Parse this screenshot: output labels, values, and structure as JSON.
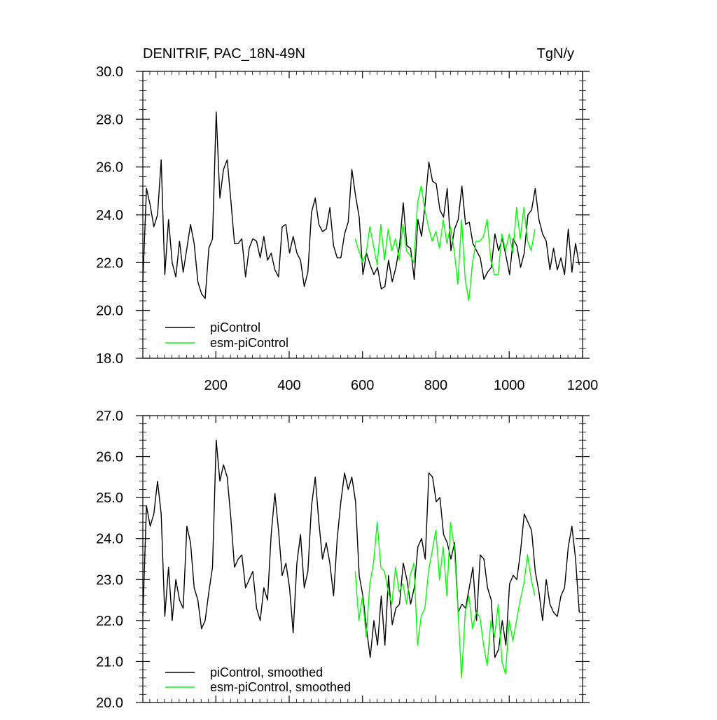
{
  "chart_data": [
    {
      "type": "line",
      "title": "DENITRIF, PAC_18N-49N",
      "units": "TgN/y",
      "xlim": [
        1,
        1200
      ],
      "ylim": [
        18.0,
        30.0
      ],
      "x_ticks": [
        200,
        400,
        600,
        800,
        1000,
        1200
      ],
      "x_tick_labels": [
        "200",
        "400",
        "600",
        "800",
        "1000",
        "1200"
      ],
      "y_ticks": [
        18.0,
        20.0,
        22.0,
        24.0,
        26.0,
        28.0,
        30.0
      ],
      "y_tick_labels": [
        "18.0",
        "20.0",
        "22.0",
        "24.0",
        "26.0",
        "28.0",
        "30.0"
      ],
      "legend_position": "bottom-left",
      "series": [
        {
          "name": "piControl",
          "color": "#000000",
          "x_start": 1,
          "x_step": 10,
          "values": [
            21.2,
            25.1,
            24.4,
            23.5,
            24.0,
            26.3,
            21.5,
            23.8,
            22.0,
            21.4,
            22.9,
            21.6,
            22.6,
            23.6,
            22.8,
            21.2,
            20.7,
            20.5,
            22.6,
            23.0,
            28.3,
            24.7,
            25.9,
            26.3,
            24.6,
            22.8,
            22.8,
            23.0,
            21.4,
            22.6,
            23.0,
            22.9,
            22.2,
            23.1,
            22.1,
            22.4,
            21.7,
            21.4,
            23.5,
            23.6,
            22.4,
            23.1,
            22.4,
            22.1,
            21.0,
            21.6,
            24.1,
            24.7,
            23.6,
            23.3,
            23.4,
            24.3,
            22.7,
            22.2,
            22.2,
            23.2,
            23.7,
            25.9,
            24.8,
            23.9,
            21.5,
            22.4,
            21.9,
            21.5,
            21.8,
            20.9,
            21.0,
            22.1,
            21.2,
            21.8,
            22.7,
            24.5,
            22.7,
            22.6,
            21.3,
            23.8,
            23.1,
            24.5,
            26.2,
            25.4,
            25.3,
            24.2,
            23.9,
            25.1,
            22.5,
            23.4,
            23.8,
            25.2,
            23.6,
            23.7,
            22.8,
            22.5,
            22.2,
            21.3,
            21.6,
            21.8,
            23.2,
            22.5,
            23.0,
            22.3,
            21.5,
            23.0,
            22.7,
            21.8,
            22.4,
            24.0,
            24.2,
            25.1,
            23.8,
            23.2,
            22.9,
            21.7,
            22.6,
            21.7,
            22.2,
            21.5,
            23.4,
            21.6,
            22.8,
            21.9
          ]
        },
        {
          "name": "esm-piControl",
          "color": "#00ff00",
          "x_start": 580,
          "x_step": 10,
          "values": [
            23.0,
            22.5,
            22.0,
            22.4,
            23.5,
            22.7,
            21.9,
            23.6,
            22.1,
            23.4,
            22.5,
            23.0,
            22.1,
            23.6,
            22.5,
            22.3,
            22.0,
            24.5,
            25.2,
            24.2,
            23.5,
            22.9,
            23.3,
            22.6,
            23.8,
            22.8,
            23.5,
            22.5,
            21.1,
            23.8,
            21.3,
            20.4,
            22.0,
            22.9,
            22.9,
            23.1,
            23.8,
            22.1,
            21.5,
            21.5,
            23.2,
            22.5,
            23.2,
            22.4,
            24.3,
            23.0,
            24.3,
            22.9,
            22.5,
            23.4
          ]
        }
      ]
    },
    {
      "type": "line",
      "title": "",
      "units": "",
      "xlim": [
        1,
        1200
      ],
      "ylim": [
        20.0,
        27.0
      ],
      "x_ticks": [
        200,
        400,
        600,
        800,
        1000,
        1200
      ],
      "x_tick_labels": [],
      "y_ticks": [
        20.0,
        21.0,
        22.0,
        23.0,
        24.0,
        25.0,
        26.0,
        27.0
      ],
      "y_tick_labels": [
        "20.0",
        "21.0",
        "22.0",
        "23.0",
        "24.0",
        "25.0",
        "26.0",
        "27.0"
      ],
      "legend_position": "bottom-left",
      "series": [
        {
          "name": "piControl, smoothed",
          "color": "#000000",
          "x_start": 1,
          "x_step": 10,
          "values": [
            22.1,
            24.8,
            24.3,
            24.6,
            25.4,
            24.6,
            22.1,
            23.3,
            22.0,
            23.0,
            22.5,
            22.3,
            24.3,
            23.9,
            22.8,
            22.5,
            21.8,
            22.0,
            22.7,
            23.3,
            26.4,
            25.4,
            25.8,
            25.5,
            24.5,
            23.3,
            23.5,
            23.6,
            22.8,
            23.0,
            23.2,
            22.3,
            22.0,
            22.8,
            22.5,
            24.1,
            25.1,
            24.2,
            23.1,
            23.4,
            22.8,
            21.7,
            23.4,
            24.1,
            22.8,
            23.2,
            24.8,
            25.5,
            24.4,
            23.5,
            23.9,
            23.4,
            22.6,
            24.0,
            24.9,
            25.6,
            25.2,
            25.5,
            24.9,
            23.1,
            22.6,
            21.8,
            21.1,
            22.0,
            21.4,
            22.6,
            21.4,
            23.1,
            21.9,
            22.3,
            22.4,
            23.4,
            23.0,
            22.4,
            22.8,
            23.8,
            24.0,
            23.5,
            25.6,
            25.5,
            24.9,
            25.0,
            24.1,
            23.9,
            23.5,
            23.9,
            22.2,
            22.4,
            22.3,
            22.8,
            23.3,
            22.0,
            23.6,
            23.5,
            22.8,
            22.5,
            21.1,
            21.3,
            22.0,
            21.4,
            22.9,
            23.1,
            23.0,
            23.7,
            24.6,
            24.4,
            24.2,
            23.2,
            22.7,
            22.0,
            23.0,
            22.4,
            22.2,
            22.1,
            22.6,
            22.8,
            23.8,
            24.3,
            23.5,
            22.2
          ]
        },
        {
          "name": "esm-piControl, smoothed",
          "color": "#00ff00",
          "x_start": 580,
          "x_step": 10,
          "values": [
            23.2,
            22.0,
            22.6,
            21.6,
            22.9,
            23.4,
            24.4,
            23.3,
            23.2,
            22.7,
            22.4,
            23.3,
            22.7,
            22.9,
            22.4,
            23.1,
            23.4,
            21.4,
            22.1,
            22.3,
            23.2,
            23.7,
            24.2,
            23.0,
            23.8,
            22.6,
            24.4,
            23.8,
            22.3,
            20.6,
            22.2,
            22.6,
            21.8,
            22.2,
            22.1,
            21.4,
            20.9,
            22.0,
            21.6,
            22.4,
            21.0,
            20.7,
            22.0,
            21.5,
            22.0,
            22.5,
            22.9,
            23.6,
            23.0,
            22.6
          ]
        }
      ]
    }
  ]
}
